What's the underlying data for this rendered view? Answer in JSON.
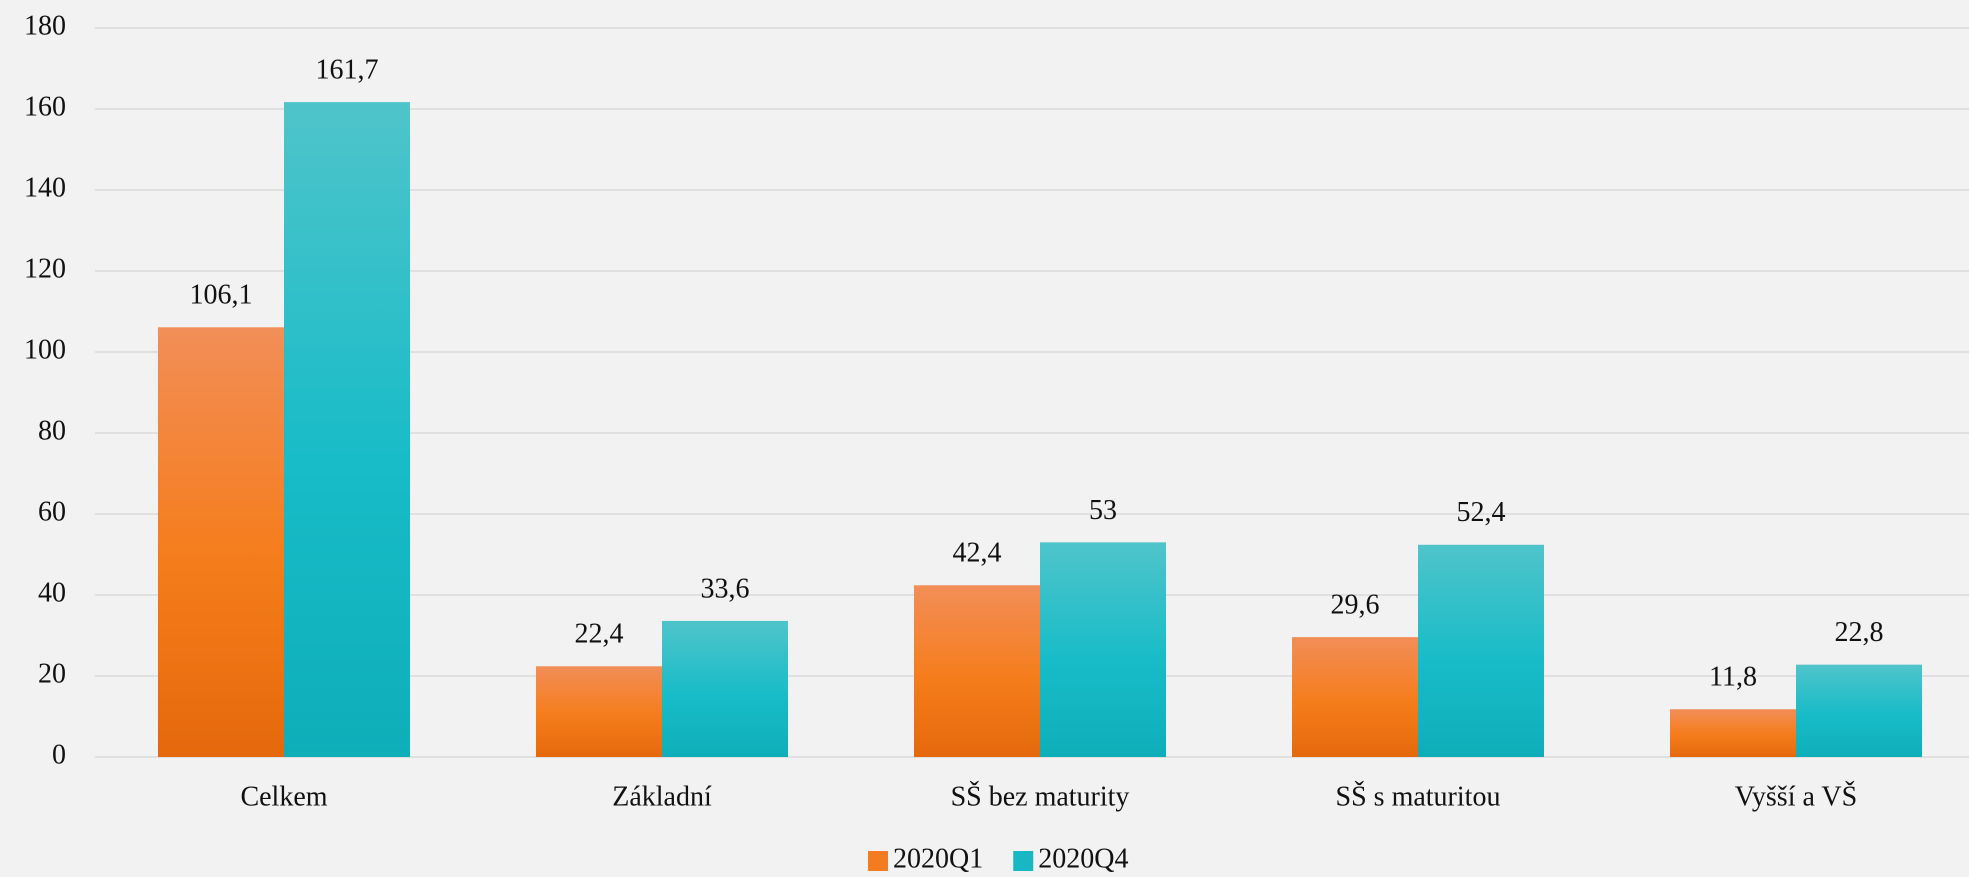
{
  "chart_data": {
    "type": "bar",
    "categories": [
      "Celkem",
      "Základní",
      "SŠ bez maturity",
      "SŠ s maturitou",
      "Vyšší a VŠ"
    ],
    "series": [
      {
        "name": "2020Q1",
        "color": "#f47b20",
        "values": [
          106.1,
          22.4,
          42.4,
          29.6,
          11.8
        ],
        "value_labels": [
          "106,1",
          "22,4",
          "42,4",
          "29,6",
          "11,8"
        ]
      },
      {
        "name": "2020Q4",
        "color": "#17b8c4",
        "values": [
          161.7,
          33.6,
          53,
          52.4,
          22.8
        ],
        "value_labels": [
          "161,7",
          "33,6",
          "53",
          "52,4",
          "22,8"
        ]
      }
    ],
    "ylim": [
      0,
      180
    ],
    "yticks": [
      0,
      20,
      40,
      60,
      80,
      100,
      120,
      140,
      160,
      180
    ],
    "grid": true,
    "legend": "bottom"
  }
}
